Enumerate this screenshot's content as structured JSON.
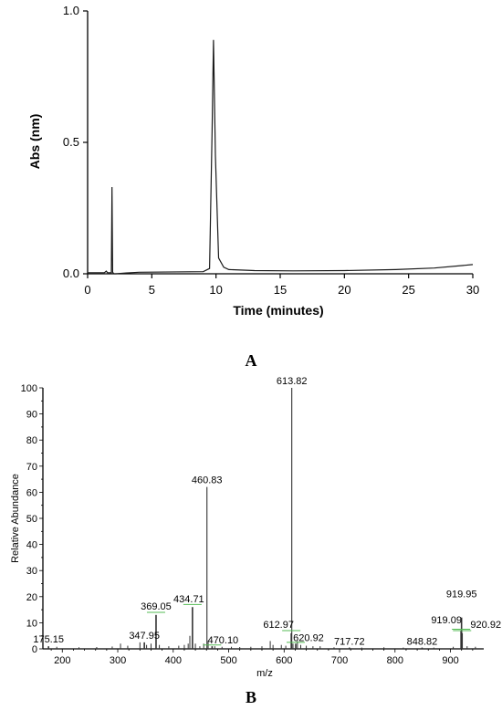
{
  "chart_data": [
    {
      "panel": "A",
      "type": "line",
      "xlabel": "Time (minutes)",
      "ylabel": "Abs (nm)",
      "xlim": [
        0,
        30
      ],
      "ylim": [
        0,
        1.0
      ],
      "xticks": [
        "0",
        "5",
        "10",
        "15",
        "20",
        "25",
        "30"
      ],
      "yticks": [
        "0.0",
        "0.5",
        "1.0"
      ],
      "series": [
        {
          "x": [
            0.0,
            1.3,
            1.45,
            1.55,
            1.7,
            1.85,
            1.9,
            1.95,
            2.05,
            2.2,
            3.0,
            4.0,
            9.0,
            9.5,
            9.7,
            9.8,
            9.95,
            10.2,
            10.6,
            11.0,
            13.0,
            16.0,
            20.0,
            24.0,
            27.0,
            30.0
          ],
          "y": [
            0.004,
            0.004,
            0.01,
            0.004,
            0.004,
            0.004,
            0.33,
            0.006,
            0.0,
            0.0,
            0.003,
            0.006,
            0.008,
            0.02,
            0.55,
            0.89,
            0.45,
            0.06,
            0.025,
            0.016,
            0.012,
            0.011,
            0.012,
            0.016,
            0.022,
            0.035
          ]
        }
      ]
    },
    {
      "panel": "B",
      "type": "bar",
      "xlabel": "m/z",
      "ylabel": "Relative Abundance",
      "xlim": [
        165,
        960
      ],
      "ylim": [
        0,
        100
      ],
      "xticks": [
        "200",
        "300",
        "400",
        "500",
        "600",
        "700",
        "800",
        "900"
      ],
      "yticks": [
        "0",
        "10",
        "20",
        "30",
        "40",
        "50",
        "60",
        "70",
        "80",
        "90",
        "100"
      ],
      "peaks": [
        {
          "mz": 175.15,
          "value": 1.0,
          "label": "175.15"
        },
        {
          "mz": 347.95,
          "value": 2.5,
          "label": "347.95"
        },
        {
          "mz": 369.05,
          "value": 13.0,
          "label": "369.05"
        },
        {
          "mz": 434.71,
          "value": 16.0,
          "label": "434.71"
        },
        {
          "mz": 460.83,
          "value": 62.0,
          "label": "460.83"
        },
        {
          "mz": 470.1,
          "value": 1.0,
          "label": "470.10"
        },
        {
          "mz": 612.97,
          "value": 6.0,
          "label": "612.97"
        },
        {
          "mz": 613.82,
          "value": 100.0,
          "label": "613.82"
        },
        {
          "mz": 620.92,
          "value": 2.0,
          "label": "620.92"
        },
        {
          "mz": 717.72,
          "value": 0.5,
          "label": "717.72"
        },
        {
          "mz": 848.82,
          "value": 0.5,
          "label": "848.82"
        },
        {
          "mz": 919.09,
          "value": 7.0,
          "label": "919.09"
        },
        {
          "mz": 919.95,
          "value": 12.0,
          "label": "919.95"
        },
        {
          "mz": 920.92,
          "value": 6.0,
          "label": "920.92"
        }
      ],
      "minor_peaks": [
        {
          "mz": 190,
          "value": 0.8
        },
        {
          "mz": 230,
          "value": 0.6
        },
        {
          "mz": 262,
          "value": 0.7
        },
        {
          "mz": 290,
          "value": 0.9
        },
        {
          "mz": 305,
          "value": 2.0
        },
        {
          "mz": 318,
          "value": 1.2
        },
        {
          "mz": 340,
          "value": 2.5
        },
        {
          "mz": 352,
          "value": 1.5
        },
        {
          "mz": 360,
          "value": 2.0
        },
        {
          "mz": 375,
          "value": 1.5
        },
        {
          "mz": 392,
          "value": 1.0
        },
        {
          "mz": 410,
          "value": 1.2
        },
        {
          "mz": 420,
          "value": 1.5
        },
        {
          "mz": 427,
          "value": 2.0
        },
        {
          "mz": 430,
          "value": 5.0
        },
        {
          "mz": 440,
          "value": 2.0
        },
        {
          "mz": 448,
          "value": 1.0
        },
        {
          "mz": 455,
          "value": 2.0
        },
        {
          "mz": 463,
          "value": 3.0
        },
        {
          "mz": 475,
          "value": 1.0
        },
        {
          "mz": 488,
          "value": 0.8
        },
        {
          "mz": 505,
          "value": 0.8
        },
        {
          "mz": 520,
          "value": 0.7
        },
        {
          "mz": 540,
          "value": 0.8
        },
        {
          "mz": 560,
          "value": 1.0
        },
        {
          "mz": 575,
          "value": 3.0
        },
        {
          "mz": 580,
          "value": 1.5
        },
        {
          "mz": 595,
          "value": 1.5
        },
        {
          "mz": 603,
          "value": 1.2
        },
        {
          "mz": 616,
          "value": 2.0
        },
        {
          "mz": 624,
          "value": 3.0
        },
        {
          "mz": 630,
          "value": 1.5
        },
        {
          "mz": 640,
          "value": 1.2
        },
        {
          "mz": 652,
          "value": 1.0
        },
        {
          "mz": 665,
          "value": 1.0
        },
        {
          "mz": 690,
          "value": 0.6
        },
        {
          "mz": 740,
          "value": 0.5
        },
        {
          "mz": 780,
          "value": 0.6
        },
        {
          "mz": 815,
          "value": 0.5
        },
        {
          "mz": 870,
          "value": 0.5
        },
        {
          "mz": 905,
          "value": 0.8
        },
        {
          "mz": 930,
          "value": 1.0
        },
        {
          "mz": 945,
          "value": 0.8
        }
      ]
    }
  ]
}
